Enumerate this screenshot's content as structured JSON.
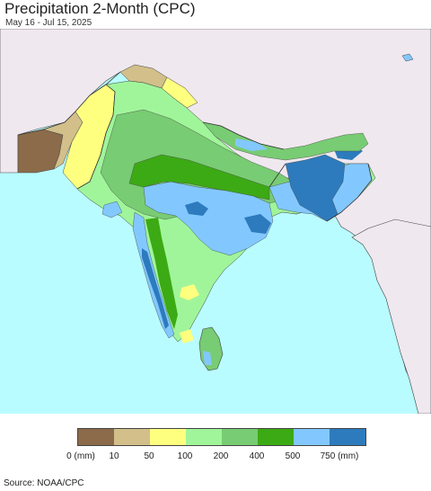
{
  "header": {
    "title": "Precipitation 2-Month (CPC)",
    "subtitle": "May 16 - Jul 15, 2025"
  },
  "legend": {
    "colors": [
      "#8b6b4a",
      "#d2bf8a",
      "#ffff7f",
      "#a0f59a",
      "#78cc73",
      "#3caa14",
      "#82c8ff",
      "#2d7bbd"
    ],
    "labels": [
      "0 (mm)",
      "10",
      "50",
      "100",
      "200",
      "400",
      "500",
      "750 (mm)"
    ]
  },
  "map": {
    "ocean_color": "#b9fcff",
    "land_outside_color": "#efe8ef",
    "border_color": "#444444"
  },
  "footer": {
    "source": "Source: NOAA/CPC"
  }
}
